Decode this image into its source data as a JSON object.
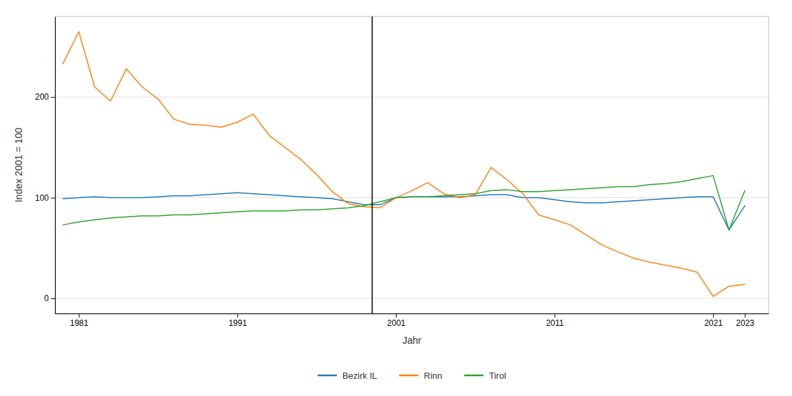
{
  "chart_data": {
    "type": "line",
    "xlabel": "Jahr",
    "ylabel": "Index 2001 = 100",
    "x": [
      1980,
      1981,
      1982,
      1983,
      1984,
      1985,
      1986,
      1987,
      1988,
      1989,
      1990,
      1991,
      1992,
      1993,
      1994,
      1995,
      1996,
      1997,
      1998,
      1999,
      2000,
      2001,
      2002,
      2003,
      2004,
      2005,
      2006,
      2007,
      2008,
      2009,
      2010,
      2011,
      2012,
      2013,
      2014,
      2015,
      2016,
      2017,
      2018,
      2019,
      2020,
      2021,
      2022,
      2023
    ],
    "series": [
      {
        "name": "Bezirk IL",
        "values": [
          99,
          100,
          101,
          100,
          100,
          100,
          101,
          102,
          102,
          103,
          104,
          105,
          104,
          103,
          102,
          101,
          100,
          99,
          96,
          93,
          93,
          100,
          101,
          101,
          101,
          101,
          102,
          103,
          103,
          100,
          100,
          98,
          96,
          95,
          95,
          96,
          97,
          98,
          99,
          100,
          101,
          101,
          68,
          92
        ]
      },
      {
        "name": "Rinn",
        "values": [
          233,
          265,
          210,
          196,
          228,
          210,
          198,
          178,
          173,
          172,
          170,
          175,
          183,
          162,
          150,
          138,
          123,
          106,
          94,
          91,
          90,
          100,
          107,
          115,
          104,
          100,
          103,
          130,
          118,
          104,
          83,
          78,
          73,
          63,
          53,
          46,
          40,
          36,
          33,
          30,
          26,
          2,
          12,
          14
        ]
      },
      {
        "name": "Tirol",
        "values": [
          73,
          76,
          78,
          80,
          81,
          82,
          82,
          83,
          83,
          84,
          85,
          86,
          87,
          87,
          87,
          88,
          88,
          89,
          90,
          92,
          96,
          100,
          101,
          101,
          102,
          103,
          104,
          107,
          108,
          106,
          106,
          107,
          108,
          109,
          110,
          111,
          111,
          113,
          114,
          116,
          119,
          122,
          68,
          107
        ]
      }
    ],
    "vline_x": 1999.5,
    "xlim": [
      1979.5,
      2024.5
    ],
    "xticks": [
      1981,
      1991,
      2001,
      2011,
      2021,
      2023
    ],
    "ylim": [
      -15,
      280
    ],
    "yticks": [
      0,
      100,
      200
    ],
    "grid": true,
    "legend": "bottom"
  }
}
